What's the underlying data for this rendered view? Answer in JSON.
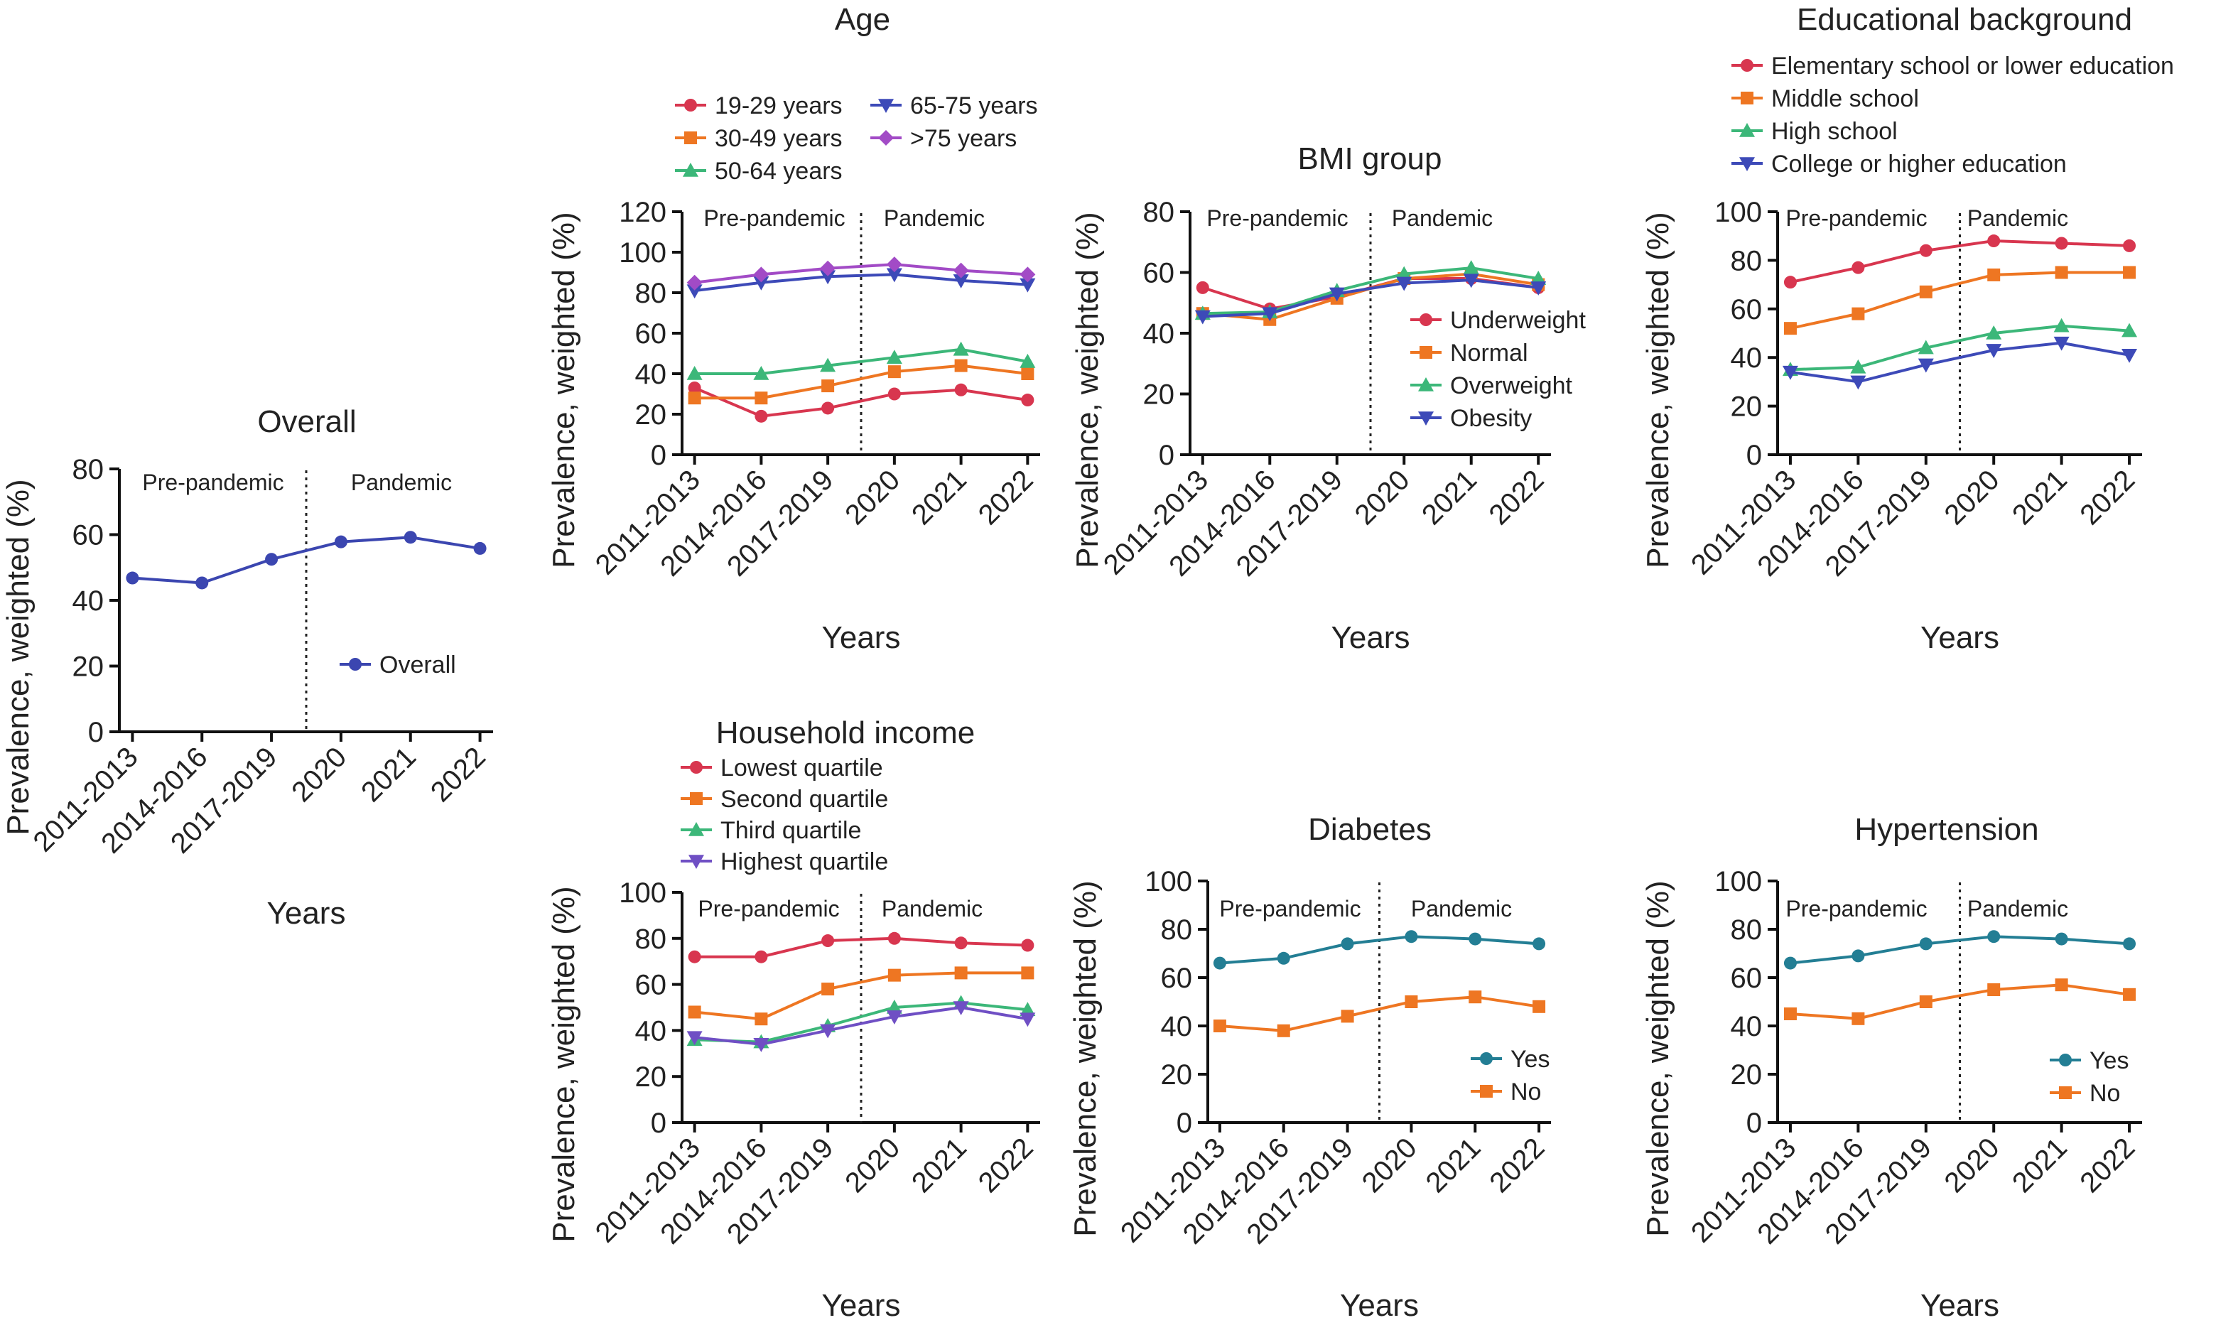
{
  "chart_data": [
    {
      "type": "line",
      "title": "Overall",
      "xlabel": "Years",
      "ylabel": "Prevalence, weighted (%)",
      "categories": [
        "2011-2013",
        "2014-2016",
        "2017-2019",
        "2020",
        "2021",
        "2022"
      ],
      "ylim": [
        0,
        80
      ],
      "yticks": [
        0,
        20,
        40,
        60,
        80
      ],
      "period_labels": [
        "Pre-pandemic",
        "Pandemic"
      ],
      "legend": "inside-right",
      "series": [
        {
          "name": "Overall",
          "color": "#3b46b0",
          "marker": "circle",
          "values": [
            46.8,
            45.3,
            52.5,
            57.8,
            59.2,
            55.8
          ]
        }
      ]
    },
    {
      "type": "line",
      "title": "Age",
      "xlabel": "Years",
      "ylabel": "Prevalence, weighted (%)",
      "categories": [
        "2011-2013",
        "2014-2016",
        "2017-2019",
        "2020",
        "2021",
        "2022"
      ],
      "ylim": [
        0,
        120
      ],
      "yticks": [
        0,
        20,
        40,
        60,
        80,
        100,
        120
      ],
      "period_labels": [
        "Pre-pandemic",
        "Pandemic"
      ],
      "legend": "top",
      "series": [
        {
          "name": "19-29 years",
          "color": "#d8364f",
          "marker": "circle",
          "values": [
            33,
            19,
            23,
            30,
            32,
            27
          ]
        },
        {
          "name": "30-49 years",
          "color": "#ee7622",
          "marker": "square",
          "values": [
            28,
            28,
            34,
            41,
            44,
            40
          ]
        },
        {
          "name": "50-64 years",
          "color": "#3cb779",
          "marker": "triangle",
          "values": [
            40,
            40,
            44,
            48,
            52,
            46
          ]
        },
        {
          "name": "65-75 years",
          "color": "#3d4ab8",
          "marker": "triangle-down",
          "values": [
            81,
            85,
            88,
            89,
            86,
            84
          ]
        },
        {
          "name": ">75 years",
          "color": "#a24bc6",
          "marker": "diamond",
          "values": [
            85,
            89,
            92,
            94,
            91,
            89
          ]
        }
      ]
    },
    {
      "type": "line",
      "title": "BMI group",
      "xlabel": "Years",
      "ylabel": "Prevalence, weighted (%)",
      "categories": [
        "2011-2013",
        "2014-2016",
        "2017-2019",
        "2020",
        "2021",
        "2022"
      ],
      "ylim": [
        0,
        80
      ],
      "yticks": [
        0,
        20,
        40,
        60,
        80
      ],
      "period_labels": [
        "Pre-pandemic",
        "Pandemic"
      ],
      "legend": "inside-right",
      "series": [
        {
          "name": "Underweight",
          "color": "#d8364f",
          "marker": "circle",
          "values": [
            55,
            48,
            52,
            58,
            58,
            55
          ]
        },
        {
          "name": "Normal",
          "color": "#ee7622",
          "marker": "square",
          "values": [
            46.5,
            44.5,
            51.5,
            58,
            59.5,
            56
          ]
        },
        {
          "name": "Overweight",
          "color": "#3cb779",
          "marker": "triangle",
          "values": [
            46.5,
            47,
            54,
            59.5,
            61.5,
            58
          ]
        },
        {
          "name": "Obesity",
          "color": "#3d4ab8",
          "marker": "triangle-down",
          "values": [
            45.5,
            46.5,
            53,
            56.5,
            57.5,
            55
          ]
        }
      ]
    },
    {
      "type": "line",
      "title": "Educational background",
      "xlabel": "Years",
      "ylabel": "Prevalence, weighted (%)",
      "categories": [
        "2011-2013",
        "2014-2016",
        "2017-2019",
        "2020",
        "2021",
        "2022"
      ],
      "ylim": [
        0,
        100
      ],
      "yticks": [
        0,
        20,
        40,
        60,
        80,
        100
      ],
      "period_labels": [
        "Pre-pandemic",
        "Pandemic"
      ],
      "legend": "top",
      "series": [
        {
          "name": "Elementary school or lower education",
          "color": "#d8364f",
          "marker": "circle",
          "values": [
            71,
            77,
            84,
            88,
            87,
            86
          ]
        },
        {
          "name": "Middle school",
          "color": "#ee7622",
          "marker": "square",
          "values": [
            52,
            58,
            67,
            74,
            75,
            75
          ]
        },
        {
          "name": "High school",
          "color": "#3cb779",
          "marker": "triangle",
          "values": [
            35,
            36,
            44,
            50,
            53,
            51
          ]
        },
        {
          "name": "College or higher education",
          "color": "#3d4ab8",
          "marker": "triangle-down",
          "values": [
            34,
            30,
            37,
            43,
            46,
            41
          ]
        }
      ]
    },
    {
      "type": "line",
      "title": "Household income",
      "xlabel": "Years",
      "ylabel": "Prevalence, weighted (%)",
      "categories": [
        "2011-2013",
        "2014-2016",
        "2017-2019",
        "2020",
        "2021",
        "2022"
      ],
      "ylim": [
        0,
        100
      ],
      "yticks": [
        0,
        20,
        40,
        60,
        80,
        100
      ],
      "period_labels": [
        "Pre-pandemic",
        "Pandemic"
      ],
      "legend": "top",
      "series": [
        {
          "name": "Lowest quartile",
          "color": "#d8364f",
          "marker": "circle",
          "values": [
            72,
            72,
            79,
            80,
            78,
            77
          ]
        },
        {
          "name": "Second quartile",
          "color": "#ee7622",
          "marker": "square",
          "values": [
            48,
            45,
            58,
            64,
            65,
            65
          ]
        },
        {
          "name": "Third quartile",
          "color": "#3cb779",
          "marker": "triangle",
          "values": [
            36,
            35,
            42,
            50,
            52,
            49
          ]
        },
        {
          "name": "Highest quartile",
          "color": "#6f4fc4",
          "marker": "triangle-down",
          "values": [
            37,
            34,
            40,
            46,
            50,
            45
          ]
        }
      ]
    },
    {
      "type": "line",
      "title": "Diabetes",
      "xlabel": "Years",
      "ylabel": "Prevalence, weighted (%)",
      "categories": [
        "2011-2013",
        "2014-2016",
        "2017-2019",
        "2020",
        "2021",
        "2022"
      ],
      "ylim": [
        0,
        100
      ],
      "yticks": [
        0,
        20,
        40,
        60,
        80,
        100
      ],
      "period_labels": [
        "Pre-pandemic",
        "Pandemic"
      ],
      "legend": "inside-bottom-right",
      "series": [
        {
          "name": "Yes",
          "color": "#237e94",
          "marker": "circle",
          "values": [
            66,
            68,
            74,
            77,
            76,
            74
          ]
        },
        {
          "name": "No",
          "color": "#ee7622",
          "marker": "square",
          "values": [
            40,
            38,
            44,
            50,
            52,
            48
          ]
        }
      ]
    },
    {
      "type": "line",
      "title": "Hypertension",
      "xlabel": "Years",
      "ylabel": "Prevalence, weighted (%)",
      "categories": [
        "2011-2013",
        "2014-2016",
        "2017-2019",
        "2020",
        "2021",
        "2022"
      ],
      "ylim": [
        0,
        100
      ],
      "yticks": [
        0,
        20,
        40,
        60,
        80,
        100
      ],
      "period_labels": [
        "Pre-pandemic",
        "Pandemic"
      ],
      "legend": "inside-bottom-right",
      "series": [
        {
          "name": "Yes",
          "color": "#237e94",
          "marker": "circle",
          "values": [
            66,
            69,
            74,
            77,
            76,
            74
          ]
        },
        {
          "name": "No",
          "color": "#ee7622",
          "marker": "square",
          "values": [
            45,
            43,
            50,
            55,
            57,
            53
          ]
        }
      ]
    }
  ]
}
